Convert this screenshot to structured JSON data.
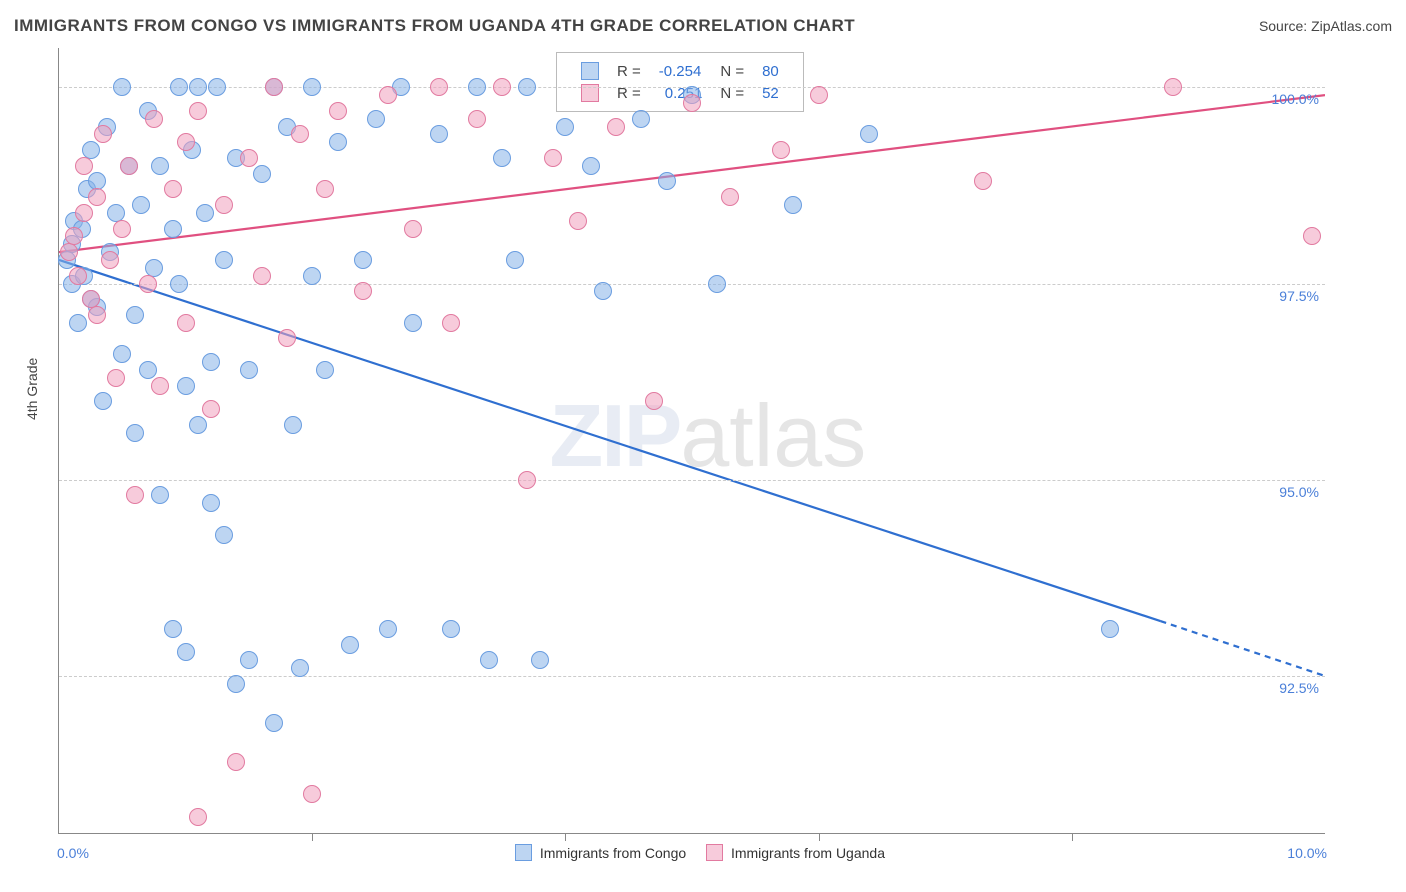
{
  "header": {
    "title": "IMMIGRANTS FROM CONGO VS IMMIGRANTS FROM UGANDA 4TH GRADE CORRELATION CHART",
    "source_prefix": "Source: ",
    "source_name": "ZipAtlas.com"
  },
  "axes": {
    "ylabel": "4th Grade",
    "xlim": [
      0.0,
      10.0
    ],
    "ylim": [
      90.5,
      100.5
    ],
    "x_ticks_major": [
      0.0,
      10.0
    ],
    "x_ticks_minor": [
      2.0,
      4.0,
      6.0,
      8.0
    ],
    "y_ticks": [
      92.5,
      95.0,
      97.5,
      100.0
    ],
    "x_tick_labels": {
      "0.0": "0.0%",
      "10.0": "10.0%"
    },
    "y_tick_labels": {
      "92.5": "92.5%",
      "95.0": "95.0%",
      "97.5": "97.5%",
      "100.0": "100.0%"
    },
    "grid_color": "#cccccc"
  },
  "watermark": {
    "zip": "ZIP",
    "atlas": "atlas"
  },
  "series": {
    "congo": {
      "label": "Immigrants from Congo",
      "fill": "rgba(134,178,232,0.55)",
      "stroke": "#6a9de0",
      "line_color": "#2f6fd0",
      "r_value": "-0.254",
      "n_value": "80",
      "trend": {
        "x1": 0.0,
        "y1": 97.8,
        "x2": 8.7,
        "y2": 93.2,
        "x3": 10.0,
        "y3": 92.5,
        "dash_from_x": 8.7
      },
      "points": [
        [
          0.06,
          97.8
        ],
        [
          0.1,
          98.0
        ],
        [
          0.1,
          97.5
        ],
        [
          0.12,
          98.3
        ],
        [
          0.15,
          97.0
        ],
        [
          0.18,
          98.2
        ],
        [
          0.2,
          97.6
        ],
        [
          0.22,
          98.7
        ],
        [
          0.25,
          99.2
        ],
        [
          0.25,
          97.3
        ],
        [
          0.3,
          98.8
        ],
        [
          0.3,
          97.2
        ],
        [
          0.35,
          96.0
        ],
        [
          0.38,
          99.5
        ],
        [
          0.4,
          97.9
        ],
        [
          0.45,
          98.4
        ],
        [
          0.5,
          96.6
        ],
        [
          0.5,
          100.0
        ],
        [
          0.55,
          99.0
        ],
        [
          0.6,
          97.1
        ],
        [
          0.6,
          95.6
        ],
        [
          0.65,
          98.5
        ],
        [
          0.7,
          96.4
        ],
        [
          0.7,
          99.7
        ],
        [
          0.75,
          97.7
        ],
        [
          0.8,
          94.8
        ],
        [
          0.8,
          99.0
        ],
        [
          0.9,
          93.1
        ],
        [
          0.9,
          98.2
        ],
        [
          0.95,
          97.5
        ],
        [
          0.95,
          100.0
        ],
        [
          1.0,
          96.2
        ],
        [
          1.0,
          92.8
        ],
        [
          1.05,
          99.2
        ],
        [
          1.1,
          95.7
        ],
        [
          1.1,
          100.0
        ],
        [
          1.15,
          98.4
        ],
        [
          1.2,
          94.7
        ],
        [
          1.2,
          96.5
        ],
        [
          1.25,
          100.0
        ],
        [
          1.3,
          94.3
        ],
        [
          1.3,
          97.8
        ],
        [
          1.4,
          92.4
        ],
        [
          1.4,
          99.1
        ],
        [
          1.5,
          92.7
        ],
        [
          1.5,
          96.4
        ],
        [
          1.6,
          98.9
        ],
        [
          1.7,
          100.0
        ],
        [
          1.7,
          91.9
        ],
        [
          1.8,
          99.5
        ],
        [
          1.85,
          95.7
        ],
        [
          1.9,
          92.6
        ],
        [
          2.0,
          100.0
        ],
        [
          2.0,
          97.6
        ],
        [
          2.1,
          96.4
        ],
        [
          2.2,
          99.3
        ],
        [
          2.3,
          92.9
        ],
        [
          2.4,
          97.8
        ],
        [
          2.5,
          99.6
        ],
        [
          2.6,
          93.1
        ],
        [
          2.7,
          100.0
        ],
        [
          2.8,
          97.0
        ],
        [
          3.0,
          99.4
        ],
        [
          3.1,
          93.1
        ],
        [
          3.3,
          100.0
        ],
        [
          3.4,
          92.7
        ],
        [
          3.5,
          99.1
        ],
        [
          3.6,
          97.8
        ],
        [
          3.7,
          100.0
        ],
        [
          3.8,
          92.7
        ],
        [
          4.0,
          99.5
        ],
        [
          4.2,
          99.0
        ],
        [
          4.3,
          97.4
        ],
        [
          4.6,
          99.6
        ],
        [
          4.8,
          98.8
        ],
        [
          5.0,
          99.9
        ],
        [
          5.2,
          97.5
        ],
        [
          5.8,
          98.5
        ],
        [
          6.4,
          99.4
        ],
        [
          8.3,
          93.1
        ]
      ]
    },
    "uganda": {
      "label": "Immigrants from Uganda",
      "fill": "rgba(240,160,190,0.55)",
      "stroke": "#e27aa0",
      "line_color": "#e05080",
      "r_value": "0.251",
      "n_value": "52",
      "trend": {
        "x1": 0.0,
        "y1": 97.9,
        "x2": 10.0,
        "y2": 99.9
      },
      "points": [
        [
          0.08,
          97.9
        ],
        [
          0.12,
          98.1
        ],
        [
          0.15,
          97.6
        ],
        [
          0.2,
          98.4
        ],
        [
          0.2,
          99.0
        ],
        [
          0.25,
          97.3
        ],
        [
          0.3,
          98.6
        ],
        [
          0.3,
          97.1
        ],
        [
          0.35,
          99.4
        ],
        [
          0.4,
          97.8
        ],
        [
          0.45,
          96.3
        ],
        [
          0.5,
          98.2
        ],
        [
          0.55,
          99.0
        ],
        [
          0.6,
          94.8
        ],
        [
          0.7,
          97.5
        ],
        [
          0.75,
          99.6
        ],
        [
          0.8,
          96.2
        ],
        [
          0.9,
          98.7
        ],
        [
          1.0,
          99.3
        ],
        [
          1.0,
          97.0
        ],
        [
          1.1,
          99.7
        ],
        [
          1.2,
          95.9
        ],
        [
          1.3,
          98.5
        ],
        [
          1.4,
          91.4
        ],
        [
          1.5,
          99.1
        ],
        [
          1.6,
          97.6
        ],
        [
          1.7,
          100.0
        ],
        [
          1.8,
          96.8
        ],
        [
          1.9,
          99.4
        ],
        [
          2.0,
          91.0
        ],
        [
          2.1,
          98.7
        ],
        [
          2.2,
          99.7
        ],
        [
          2.4,
          97.4
        ],
        [
          2.6,
          99.9
        ],
        [
          2.8,
          98.2
        ],
        [
          3.0,
          100.0
        ],
        [
          3.1,
          97.0
        ],
        [
          3.3,
          99.6
        ],
        [
          3.5,
          100.0
        ],
        [
          3.7,
          95.0
        ],
        [
          3.9,
          99.1
        ],
        [
          4.1,
          98.3
        ],
        [
          4.4,
          99.5
        ],
        [
          4.7,
          96.0
        ],
        [
          5.0,
          99.8
        ],
        [
          5.3,
          98.6
        ],
        [
          5.7,
          99.2
        ],
        [
          6.0,
          99.9
        ],
        [
          7.3,
          98.8
        ],
        [
          8.8,
          100.0
        ],
        [
          1.1,
          90.7
        ],
        [
          9.9,
          98.1
        ]
      ]
    }
  },
  "r_legend": {
    "r_label": "R =",
    "n_label": "N ="
  },
  "bottom_legend": {}
}
